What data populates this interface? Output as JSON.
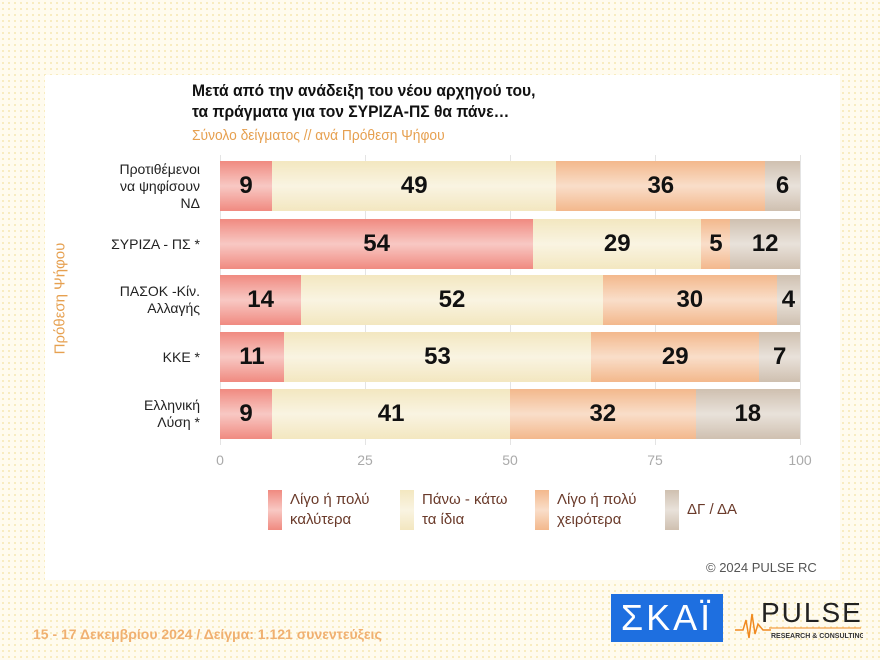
{
  "chart_data": {
    "type": "bar",
    "orientation": "horizontal",
    "stacked": true,
    "title": [
      "Μετά από την ανάδειξη του νέου αρχηγού του,",
      "τα πράγματα για τον ΣΥΡΙΖΑ-ΠΣ θα πάνε…"
    ],
    "subtitle": "Σύνολο δείγματος // ανά Πρόθεση Ψήφου",
    "ylabel": "Πρόθεση Ψήφου",
    "categories": [
      [
        "Προτιθέμενοι",
        "να ψηφίσουν",
        "ΝΔ"
      ],
      [
        "ΣΥΡΙΖΑ - ΠΣ *"
      ],
      [
        "ΠΑΣΟΚ -Κίν.",
        "Αλλαγής"
      ],
      [
        "ΚΚΕ *"
      ],
      [
        "Ελληνική",
        "Λύση *"
      ]
    ],
    "series": [
      {
        "name": "Λίγο ή πολύ καλύτερα",
        "legend": [
          "Λίγο ή πολύ",
          "καλύτερα"
        ],
        "color": "#f08a80",
        "values": [
          9,
          54,
          14,
          11,
          9
        ]
      },
      {
        "name": "Πάνω - κάτω τα ίδια",
        "legend": [
          "Πάνω - κάτω",
          "τα ίδια"
        ],
        "color": "#f3e7c0",
        "values": [
          49,
          29,
          52,
          53,
          41
        ]
      },
      {
        "name": "Λίγο ή πολύ χειρότερα",
        "legend": [
          "Λίγο ή πολύ",
          "χειρότερα"
        ],
        "color": "#f3b88c",
        "values": [
          36,
          5,
          30,
          29,
          32
        ]
      },
      {
        "name": "ΔΓ / ΔΑ",
        "legend": [
          "ΔΓ / ΔΑ"
        ],
        "color": "#cfc0b0",
        "values": [
          6,
          12,
          4,
          7,
          18
        ]
      }
    ],
    "xticks": [
      0,
      25,
      50,
      75,
      100
    ],
    "xlim": [
      0,
      100
    ],
    "grid": true,
    "legend_position": "bottom"
  },
  "copyright": "© 2024 PULSE RC",
  "footer": "15 - 17 Δεκεμβρίου 2024  /  Δείγμα:  1.121 συνεντεύξεις",
  "logos": {
    "skai": "ΣΚΑΪ",
    "pulse": "PULSE",
    "pulse_sub": "RESEARCH & CONSULTING"
  }
}
